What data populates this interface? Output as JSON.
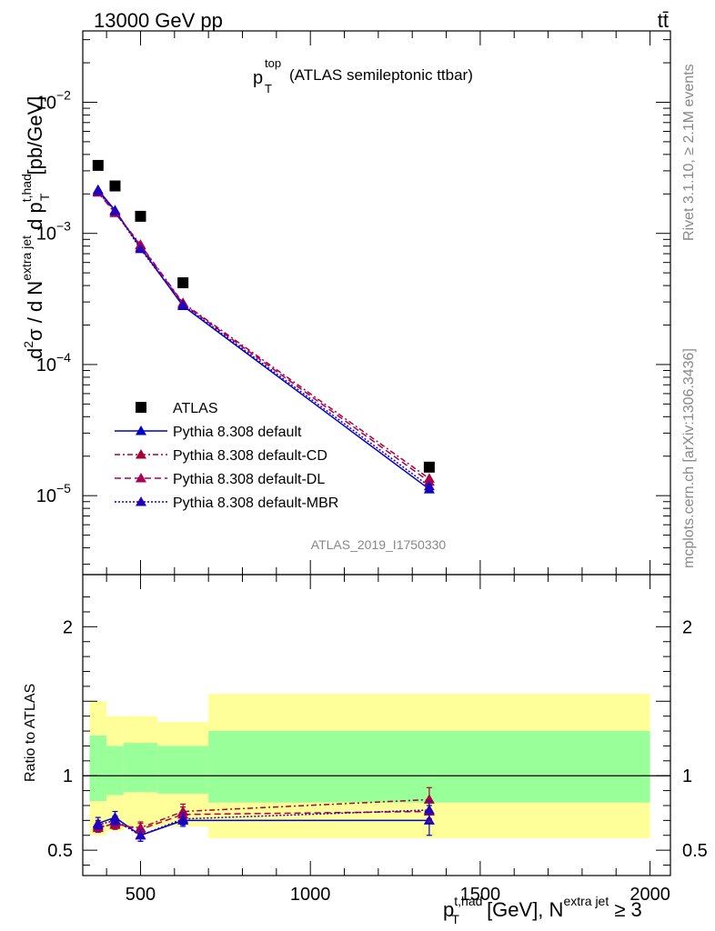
{
  "header": {
    "left": "13000 GeV pp",
    "right": "tt̄"
  },
  "plot_title": {
    "main": "p",
    "sup": "top",
    "sub": "T",
    "rest": " (ATLAS semileptonic ttbar)"
  },
  "side_labels": {
    "rivet": "Rivet 3.1.10, ≥ 2.1M events",
    "mcplots": "mcplots.cern.ch [arXiv:1306.3436]"
  },
  "analysis_id": "ATLAS_2019_I1750330",
  "axes": {
    "ylabel_main_parts": [
      "d",
      "2",
      "σ / d N",
      "extra jet",
      " d p",
      "t,had",
      "T",
      " [pb/GeV]"
    ],
    "ylabel_ratio": "Ratio to ATLAS",
    "xlabel_parts": [
      "p",
      "t,had",
      "T",
      " [GeV], N",
      "extra jet",
      " ≥ 3"
    ],
    "main_yticks": [
      {
        "base": "10",
        "exp": "−2",
        "value": 0.01
      },
      {
        "base": "10",
        "exp": "−3",
        "value": 0.001
      },
      {
        "base": "10",
        "exp": "−4",
        "value": 0.0001
      },
      {
        "base": "10",
        "exp": "−5",
        "value": 1e-05
      }
    ],
    "ratio_yticks": [
      {
        "label": "2",
        "value": 2
      },
      {
        "label": "1",
        "value": 1
      },
      {
        "label": "0.5",
        "value": 0.5
      }
    ],
    "xticks": [
      {
        "label": "500",
        "value": 500
      },
      {
        "label": "1000",
        "value": 1000
      },
      {
        "label": "1500",
        "value": 1500
      },
      {
        "label": "2000",
        "value": 2000
      }
    ]
  },
  "legend": [
    {
      "label": "ATLAS",
      "color": "#000000",
      "marker": "square",
      "dash": ""
    },
    {
      "label": "Pythia 8.308 default",
      "color": "#0000cc",
      "marker": "triangle",
      "dash": ""
    },
    {
      "label": "Pythia 8.308 default-CD",
      "color": "#aa0033",
      "marker": "triangle",
      "dash": "6,3,2,3"
    },
    {
      "label": "Pythia 8.308 default-DL",
      "color": "#aa0055",
      "marker": "triangle",
      "dash": "7,4"
    },
    {
      "label": "Pythia 8.308 default-MBR",
      "color": "#2200bb",
      "marker": "triangle",
      "dash": "2,2"
    }
  ],
  "chart_data": {
    "type": "line",
    "x_scale": "linear",
    "y_scale_main": "log",
    "xlim": [
      330,
      2060
    ],
    "ylim_main": [
      2.5e-06,
      0.035
    ],
    "ylim_ratio": [
      0.33,
      2.35
    ],
    "x_bins": [
      [
        350,
        400
      ],
      [
        400,
        450
      ],
      [
        450,
        550
      ],
      [
        550,
        700
      ],
      [
        700,
        2000
      ]
    ],
    "x": [
      375,
      425,
      500,
      625,
      1350
    ],
    "series": [
      {
        "name": "ATLAS",
        "values": [
          0.0033,
          0.0023,
          0.00135,
          0.00042,
          1.65e-05
        ]
      },
      {
        "name": "Pythia 8.308 default",
        "values": [
          0.00215,
          0.0015,
          0.00078,
          0.00028,
          1.12e-05
        ]
      },
      {
        "name": "Pythia 8.308 default-CD",
        "values": [
          0.00208,
          0.00145,
          0.00082,
          0.000295,
          1.35e-05
        ]
      },
      {
        "name": "Pythia 8.308 default-DL",
        "values": [
          0.00205,
          0.00143,
          0.00081,
          0.00029,
          1.28e-05
        ]
      },
      {
        "name": "Pythia 8.308 default-MBR",
        "values": [
          0.0021,
          0.00148,
          0.00076,
          0.000285,
          1.18e-05
        ]
      }
    ],
    "ratio_series": [
      {
        "name": "Pythia 8.308 default",
        "values": [
          0.68,
          0.72,
          0.6,
          0.7,
          0.7
        ],
        "errors": [
          0.04,
          0.04,
          0.04,
          0.04,
          0.1
        ]
      },
      {
        "name": "Pythia 8.308 default-CD",
        "values": [
          0.66,
          0.67,
          0.65,
          0.76,
          0.84
        ],
        "errors": [
          0.03,
          0.03,
          0.04,
          0.05,
          0.08
        ]
      },
      {
        "name": "Pythia 8.308 default-DL",
        "values": [
          0.65,
          0.68,
          0.64,
          0.74,
          0.76
        ],
        "errors": [
          0.03,
          0.03,
          0.04,
          0.05,
          0.07
        ]
      },
      {
        "name": "Pythia 8.308 default-MBR",
        "values": [
          0.67,
          0.7,
          0.6,
          0.71,
          0.77
        ],
        "errors": [
          0.03,
          0.03,
          0.04,
          0.04,
          0.06
        ]
      }
    ],
    "ratio_bands": {
      "yellow": [
        [
          0.6,
          1.5
        ],
        [
          0.63,
          1.4
        ],
        [
          0.65,
          1.4
        ],
        [
          0.66,
          1.36
        ],
        [
          0.58,
          1.55
        ]
      ],
      "green": [
        [
          0.83,
          1.27
        ],
        [
          0.87,
          1.2
        ],
        [
          0.89,
          1.22
        ],
        [
          0.88,
          1.2
        ],
        [
          0.82,
          1.3
        ]
      ]
    },
    "ratio_reference": 1
  }
}
